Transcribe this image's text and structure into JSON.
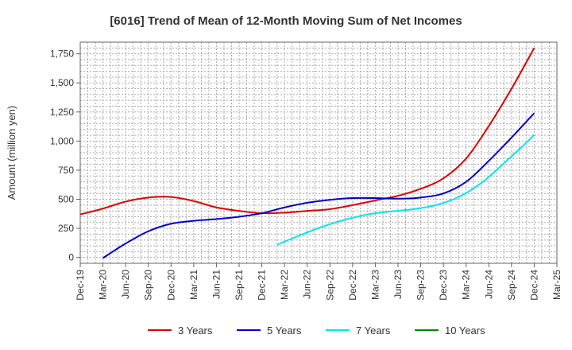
{
  "chart_data": {
    "type": "line",
    "title": "[6016]  Trend of Mean of 12-Month Moving Sum of Net Incomes",
    "xlabel": "",
    "ylabel": "Amount (million yen)",
    "ylim": [
      -50,
      1850
    ],
    "yticks": [
      0,
      250,
      500,
      750,
      1000,
      1250,
      1500,
      1750
    ],
    "ytick_labels": [
      "0",
      "250",
      "500",
      "750",
      "1,000",
      "1,250",
      "1,500",
      "1,750"
    ],
    "xtick_labels": [
      "Dec-19",
      "Mar-20",
      "Jun-20",
      "Sep-20",
      "Dec-20",
      "Mar-21",
      "Jun-21",
      "Sep-21",
      "Dec-21",
      "Mar-22",
      "Jun-22",
      "Sep-22",
      "Dec-22",
      "Mar-23",
      "Jun-23",
      "Sep-23",
      "Dec-23",
      "Mar-24",
      "Jun-24",
      "Sep-24",
      "Dec-24",
      "Mar-25"
    ],
    "grid": true,
    "legend_position": "bottom",
    "series": [
      {
        "name": "3 Years",
        "color": "#dd0000",
        "points": [
          [
            0,
            370
          ],
          [
            1,
            420
          ],
          [
            2,
            480
          ],
          [
            3,
            515
          ],
          [
            4,
            520
          ],
          [
            5,
            485
          ],
          [
            6,
            430
          ],
          [
            7,
            400
          ],
          [
            8,
            380
          ],
          [
            9,
            385
          ],
          [
            10,
            400
          ],
          [
            11,
            415
          ],
          [
            12,
            450
          ],
          [
            13,
            490
          ],
          [
            14,
            530
          ],
          [
            15,
            590
          ],
          [
            16,
            680
          ],
          [
            17,
            850
          ],
          [
            18,
            1130
          ],
          [
            19,
            1450
          ],
          [
            20,
            1800
          ]
        ]
      },
      {
        "name": "5 Years",
        "color": "#0000cc",
        "points": [
          [
            1,
            -5
          ],
          [
            2,
            120
          ],
          [
            3,
            225
          ],
          [
            4,
            290
          ],
          [
            5,
            315
          ],
          [
            6,
            330
          ],
          [
            7,
            350
          ],
          [
            8,
            380
          ],
          [
            9,
            430
          ],
          [
            10,
            470
          ],
          [
            11,
            495
          ],
          [
            12,
            510
          ],
          [
            13,
            510
          ],
          [
            14,
            505
          ],
          [
            15,
            515
          ],
          [
            16,
            550
          ],
          [
            17,
            650
          ],
          [
            18,
            830
          ],
          [
            19,
            1030
          ],
          [
            20,
            1240
          ]
        ]
      },
      {
        "name": "7 Years",
        "color": "#00e5ee",
        "points": [
          [
            8.67,
            110
          ],
          [
            9.67,
            190
          ],
          [
            10.67,
            265
          ],
          [
            11.67,
            325
          ],
          [
            12.67,
            370
          ],
          [
            13.67,
            395
          ],
          [
            14.67,
            415
          ],
          [
            15.67,
            450
          ],
          [
            16.67,
            520
          ],
          [
            17.67,
            640
          ],
          [
            18.67,
            810
          ],
          [
            19.67,
            990
          ],
          [
            20,
            1055
          ]
        ]
      },
      {
        "name": "10 Years",
        "color": "#008800",
        "points": []
      }
    ]
  }
}
